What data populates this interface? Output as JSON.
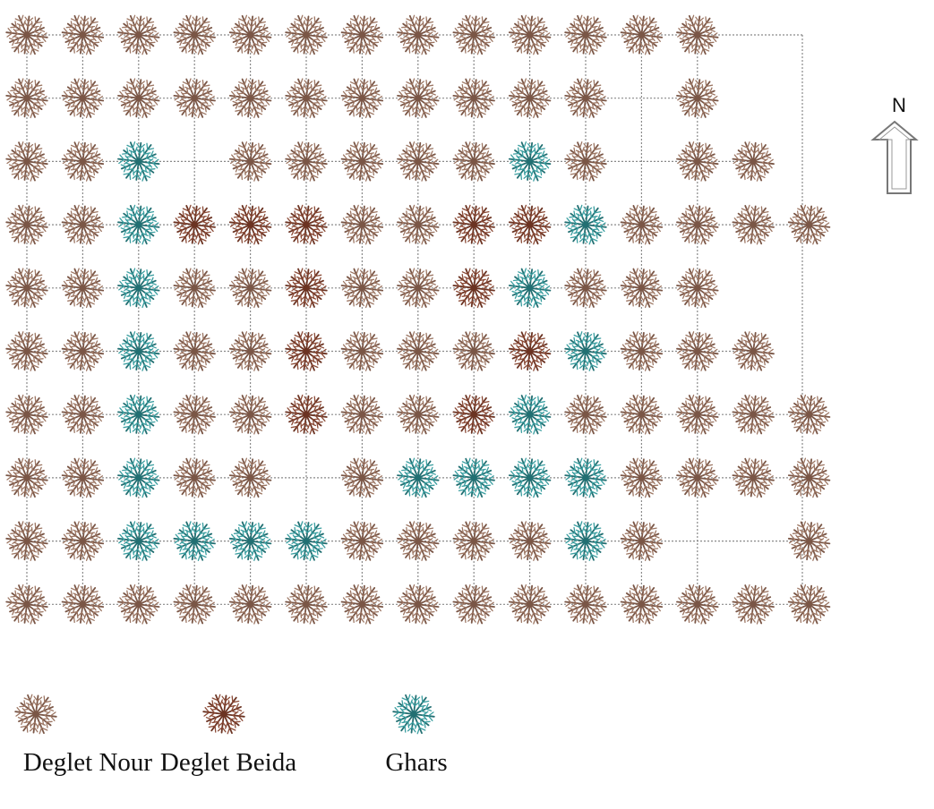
{
  "compass": {
    "label": "N",
    "icon": "north-arrow-icon"
  },
  "legend": [
    {
      "variety": "DN",
      "label": "Deglet Nour"
    },
    {
      "variety": "DB",
      "label": "Deglet Beida"
    },
    {
      "variety": "GH",
      "label": "Ghars"
    }
  ],
  "varieties": {
    "DN": {
      "color": "#9c7663",
      "stroke": "#7a5646"
    },
    "DB": {
      "color": "#8a4a36",
      "stroke": "#6b3322"
    },
    "GH": {
      "color": "#3a9ea0",
      "stroke": "#226f72"
    }
  },
  "plantation": {
    "codes": {
      "D": "DN",
      "B": "DB",
      "G": "GH",
      ".": null
    },
    "rows": [
      "DDDDDDDDDDDDD..",
      "DDDDDDDDDDD.D..",
      "DDG.DDDDDGD.DD.",
      "DDGBBBDDBBGDDDD",
      "DDGDDBDDBGDDD..",
      "DDGDDBDDDBGDDD.",
      "DDGDDBDDBGDDDDD",
      "DDGDD.DGGGGDDDD",
      "DDGGGGDDDDGD..D",
      "DDDDDDDDDDDDDDD"
    ]
  }
}
